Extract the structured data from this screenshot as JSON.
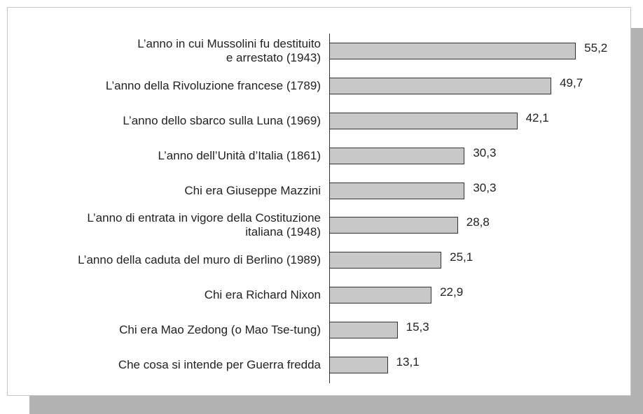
{
  "chart_data": {
    "type": "bar",
    "orientation": "horizontal",
    "categories": [
      "L’anno in cui Mussolini fu destituito\ne arrestato (1943)",
      "L’anno della Rivoluzione francese (1789)",
      "L’anno dello sbarco sulla Luna (1969)",
      "L’anno dell’Unità d’Italia (1861)",
      "Chi era Giuseppe Mazzini",
      "L’anno di entrata in vigore della Costituzione\nitaliana (1948)",
      "L’anno della caduta del muro di Berlino (1989)",
      "Chi era Richard Nixon",
      "Chi era Mao Zedong (o Mao Tse-tung)",
      "Che cosa si intende per Guerra fredda"
    ],
    "values": [
      55.2,
      49.7,
      42.1,
      30.3,
      30.3,
      28.8,
      25.1,
      22.9,
      15.3,
      13.1
    ],
    "value_labels": [
      "55,2",
      "49,7",
      "42,1",
      "30,3",
      "30,3",
      "28,8",
      "25,1",
      "22,9",
      "15,3",
      "13,1"
    ],
    "color": "#c8c8c8"
  }
}
